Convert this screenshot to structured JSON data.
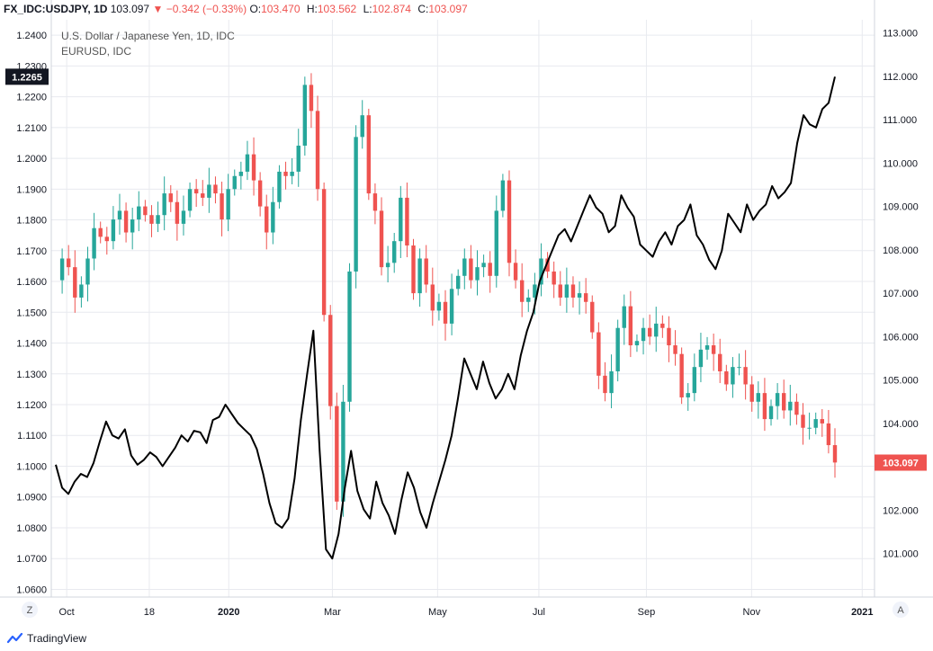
{
  "header": {
    "symbol": "FX_IDC:USDJPY, 1D",
    "last": "103.097",
    "arrow": "▼",
    "change": "−0.342 (−0.33%)",
    "o_label": "O:",
    "o": "103.470",
    "h_label": "H:",
    "h": "103.562",
    "l_label": "L:",
    "l": "102.874",
    "c_label": "C:",
    "c": "103.097"
  },
  "legend": {
    "main": "U.S. Dollar / Japanese Yen, 1D, IDC",
    "compare": "EURUSD, IDC"
  },
  "brand": {
    "name": "TradingView"
  },
  "corners": {
    "left": "Z",
    "right": "A"
  },
  "colors": {
    "up": "#26a69a",
    "down": "#ef5350",
    "compare_line": "#000000",
    "grid": "#e8eaef",
    "badge_dark": "#131722"
  },
  "chart_data": {
    "type": "line",
    "left_axis": {
      "ticks": [
        "1.2400",
        "1.2300",
        "1.2200",
        "1.2100",
        "1.2000",
        "1.1900",
        "1.1800",
        "1.1700",
        "1.1600",
        "1.1500",
        "1.1400",
        "1.1300",
        "1.1200",
        "1.1100",
        "1.1000",
        "1.0900",
        "1.0800",
        "1.0700",
        "1.0600"
      ],
      "range": [
        1.0575,
        1.245
      ],
      "current_badge": "1.2265"
    },
    "right_axis": {
      "ticks": [
        "113.000",
        "112.000",
        "111.000",
        "110.000",
        "109.000",
        "108.000",
        "107.000",
        "106.000",
        "105.000",
        "104.000",
        "103.000",
        "102.000",
        "101.000"
      ],
      "range": [
        100.0,
        113.3
      ],
      "current_badge": "103.097"
    },
    "x_axis": {
      "ticks": [
        "Oct",
        "18",
        "2020",
        "Mar",
        "May",
        "Jul",
        "Sep",
        "Nov",
        "2021"
      ]
    },
    "series": [
      {
        "name": "EURUSD, IDC",
        "style": "line",
        "scale": "left",
        "values": [
          1.1005,
          1.093,
          1.091,
          1.095,
          1.0975,
          1.0965,
          1.101,
          1.108,
          1.1145,
          1.11,
          1.109,
          1.112,
          1.1035,
          1.1005,
          1.102,
          1.1045,
          1.103,
          1.1,
          1.103,
          1.106,
          1.11,
          1.108,
          1.1115,
          1.111,
          1.1075,
          1.115,
          1.116,
          1.12,
          1.117,
          1.114,
          1.112,
          1.11,
          1.1055,
          1.0975,
          1.088,
          1.0815,
          1.08,
          1.083,
          1.096,
          1.115,
          1.13,
          1.144,
          1.105,
          1.073,
          1.07,
          1.078,
          1.093,
          1.105,
          1.092,
          1.086,
          1.083,
          1.095,
          1.088,
          1.084,
          1.078,
          1.089,
          1.098,
          1.093,
          1.085,
          1.08,
          1.088,
          1.095,
          1.102,
          1.11,
          1.122,
          1.135,
          1.13,
          1.125,
          1.134,
          1.127,
          1.122,
          1.125,
          1.13,
          1.125,
          1.136,
          1.144,
          1.15,
          1.16,
          1.165,
          1.17,
          1.175,
          1.177,
          1.173,
          1.178,
          1.183,
          1.188,
          1.184,
          1.182,
          1.176,
          1.178,
          1.188,
          1.184,
          1.181,
          1.172,
          1.17,
          1.168,
          1.173,
          1.176,
          1.172,
          1.178,
          1.18,
          1.185,
          1.175,
          1.172,
          1.167,
          1.164,
          1.17,
          1.182,
          1.179,
          1.176,
          1.185,
          1.18,
          1.183,
          1.185,
          1.191,
          1.187,
          1.189,
          1.192,
          1.205,
          1.214,
          1.211,
          1.21,
          1.216,
          1.218,
          1.2265
        ]
      },
      {
        "name": "U.S. Dollar / Japanese Yen, 1D, IDC",
        "style": "candles",
        "scale": "right",
        "close": [
          107.3,
          107.8,
          107.6,
          106.9,
          107.2,
          107.8,
          108.5,
          108.3,
          108.2,
          108.7,
          108.9,
          108.4,
          108.7,
          109.0,
          108.8,
          108.6,
          108.8,
          109.3,
          109.1,
          108.6,
          108.9,
          109.4,
          109.3,
          109.2,
          109.5,
          109.3,
          108.7,
          109.4,
          109.7,
          109.8,
          110.2,
          109.6,
          109.0,
          108.4,
          109.1,
          109.8,
          109.7,
          109.8,
          110.4,
          111.8,
          111.2,
          109.4,
          106.5,
          104.4,
          102.2,
          104.5,
          107.5,
          110.6,
          111.1,
          109.3,
          108.9,
          107.6,
          107.7,
          108.2,
          109.2,
          108.1,
          107.0,
          107.8,
          107.2,
          106.6,
          106.8,
          106.3,
          107.1,
          107.4,
          107.8,
          107.3,
          107.6,
          107.7,
          107.4,
          108.9,
          109.6,
          107.7,
          107.3,
          106.8,
          106.9,
          107.2,
          107.8,
          107.5,
          107.2,
          106.9,
          107.2,
          106.9,
          107.0,
          106.8,
          106.1,
          105.1,
          104.7,
          105.2,
          106.2,
          106.7,
          105.8,
          105.9,
          106.2,
          106.0,
          106.3,
          106.2,
          105.8,
          105.6,
          104.6,
          104.7,
          105.3,
          105.7,
          105.8,
          105.6,
          105.2,
          104.9,
          105.3,
          105.3,
          104.9,
          104.5,
          104.7,
          104.1,
          104.4,
          104.7,
          104.3,
          104.5,
          104.2,
          103.9,
          103.9,
          104.1,
          104.0,
          103.5,
          103.1
        ]
      }
    ]
  }
}
